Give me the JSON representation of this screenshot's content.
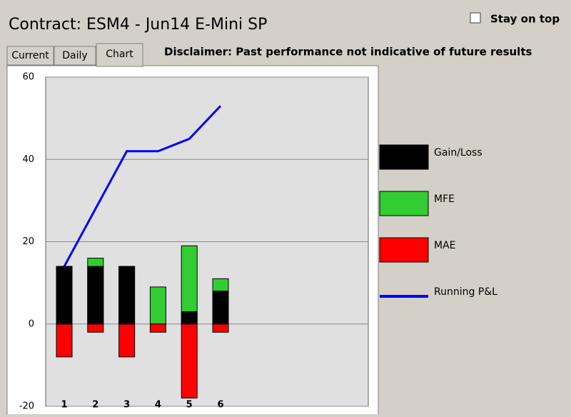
{
  "window": {
    "title": "Contract: ESM4 - Jun14 E-Mini SP",
    "stay_on_top": "Stay on top",
    "tabs": [
      "Current",
      "Daily",
      "Chart"
    ],
    "disclaimer": "Disclaimer: Past performance not indicative of future results"
  },
  "chart_data": {
    "type": "combo",
    "categories": [
      "1",
      "2",
      "3",
      "4",
      "5",
      "6"
    ],
    "series": [
      {
        "name": "Gain/Loss",
        "color": "#000000",
        "kind": "bar",
        "values": [
          14,
          14,
          14,
          0,
          3,
          8
        ]
      },
      {
        "name": "MFE",
        "color": "#33cc33",
        "kind": "bar",
        "values": [
          14,
          16,
          14,
          9,
          19,
          11
        ]
      },
      {
        "name": "MAE",
        "color": "#ff0000",
        "kind": "bar",
        "values": [
          -8,
          -2,
          -8,
          -2,
          -18,
          -2
        ]
      },
      {
        "name": "Running P&L",
        "color": "#0000ff",
        "kind": "line",
        "values": [
          14,
          28,
          42,
          42,
          45,
          53
        ]
      }
    ],
    "ylim": [
      -20,
      60
    ],
    "yticks": [
      -20,
      0,
      20,
      40,
      60
    ],
    "grid": true
  }
}
